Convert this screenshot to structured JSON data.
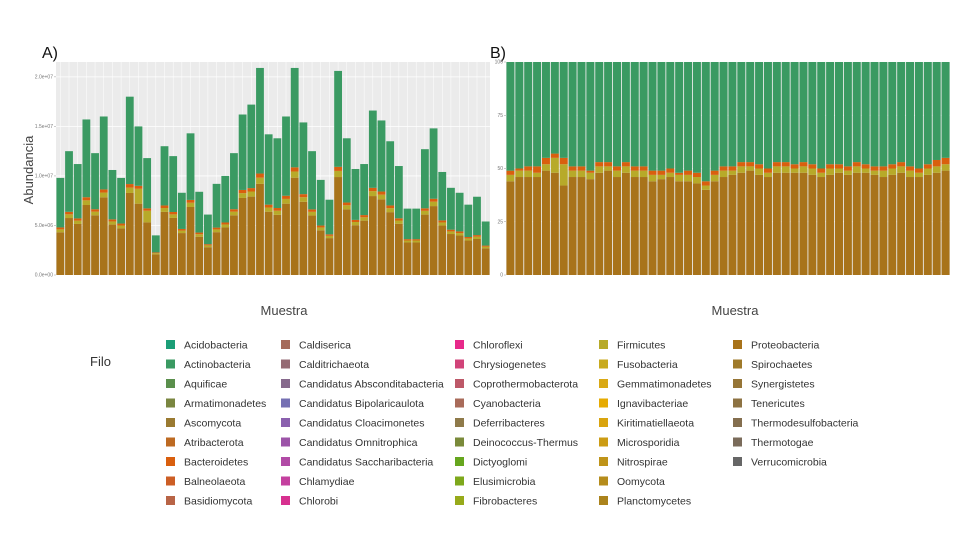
{
  "chart_data": [
    {
      "panel_label": "A)",
      "type": "bar",
      "stacked": true,
      "xlabel": "Muestra",
      "ylabel": "Abundancia",
      "yticks": [
        "0.0e+00",
        "5.0e+06",
        "1.0e+07",
        "1.5e+07",
        "2.0e+07"
      ],
      "ylim": [
        0,
        21500000
      ],
      "n_samples": 50,
      "grid": true,
      "totals": [
        9800000,
        12500000,
        11200000,
        15700000,
        12300000,
        16000000,
        10600000,
        9800000,
        18000000,
        15000000,
        11800000,
        4000000,
        13000000,
        12000000,
        8300000,
        14300000,
        8400000,
        6100000,
        9200000,
        10000000,
        12300000,
        16200000,
        17200000,
        20900000,
        14200000,
        13800000,
        16000000,
        20900000,
        15400000,
        12500000,
        9600000,
        7600000,
        20600000,
        13800000,
        10700000,
        11200000,
        16600000,
        15600000,
        13500000,
        11000000,
        6700000,
        6700000,
        12700000,
        14800000,
        10400000,
        8800000,
        8300000,
        7100000,
        7900000,
        5400000
      ],
      "proteo_fraction": [
        0.44,
        0.46,
        0.46,
        0.45,
        0.49,
        0.49,
        0.48,
        0.48,
        0.46,
        0.48,
        0.45,
        0.52,
        0.49,
        0.48,
        0.51,
        0.48,
        0.46,
        0.46,
        0.47,
        0.48,
        0.49,
        0.48,
        0.46,
        0.44,
        0.45,
        0.44,
        0.45,
        0.47,
        0.48,
        0.48,
        0.47,
        0.49,
        0.48,
        0.48,
        0.47,
        0.49,
        0.48,
        0.49,
        0.47,
        0.47,
        0.49,
        0.49,
        0.48,
        0.47,
        0.48,
        0.47,
        0.48,
        0.49,
        0.46,
        0.5
      ],
      "series": [
        {
          "name": "Proteobacteria",
          "color": "#a8731a"
        },
        {
          "name": "Firmicutes",
          "color": "#b7aa29"
        },
        {
          "name": "Bacteroidetes",
          "color": "#d95f0e"
        },
        {
          "name": "Actinobacteria",
          "color": "#3a9a62"
        }
      ]
    },
    {
      "panel_label": "B)",
      "type": "bar",
      "stacked": true,
      "percent": true,
      "xlabel": "Muestra",
      "ylabel": "",
      "yticks": [
        "0",
        "25",
        "50",
        "75",
        "100"
      ],
      "ylim": [
        0,
        100
      ],
      "n_samples": 50,
      "grid": true,
      "proteo_percent": [
        44,
        46,
        46,
        46,
        49,
        48,
        42,
        46,
        46,
        45,
        48,
        49,
        46,
        48,
        46,
        46,
        44,
        45,
        46,
        44,
        44,
        43,
        40,
        44,
        46,
        47,
        48,
        49,
        47,
        46,
        48,
        48,
        48,
        48,
        47,
        46,
        47,
        48,
        47,
        48,
        48,
        47,
        46,
        47,
        48,
        46,
        46,
        47,
        48,
        49
      ],
      "firmicutes_percent": [
        3,
        3,
        3,
        2,
        3,
        7,
        10,
        3,
        3,
        3,
        3,
        2,
        3,
        3,
        3,
        3,
        3,
        2,
        2,
        3,
        3,
        3,
        2,
        3,
        3,
        2,
        3,
        2,
        3,
        2,
        3,
        3,
        2,
        3,
        3,
        2,
        3,
        2,
        2,
        3,
        2,
        2,
        3,
        3,
        3,
        3,
        2,
        3,
        3,
        3
      ],
      "bacteroidetes_percent": [
        2,
        1,
        2,
        3,
        3,
        2,
        3,
        2,
        2,
        1,
        2,
        2,
        2,
        2,
        2,
        2,
        2,
        2,
        2,
        1,
        2,
        2,
        2,
        2,
        2,
        2,
        2,
        2,
        2,
        2,
        2,
        2,
        2,
        2,
        2,
        2,
        2,
        2,
        2,
        2,
        2,
        2,
        2,
        2,
        2,
        2,
        2,
        2,
        3,
        3
      ],
      "series": [
        {
          "name": "Proteobacteria",
          "color": "#a8731a"
        },
        {
          "name": "Firmicutes",
          "color": "#b7aa29"
        },
        {
          "name": "Bacteroidetes",
          "color": "#d95f0e"
        },
        {
          "name": "Actinobacteria",
          "color": "#3a9a62"
        }
      ]
    }
  ],
  "legend": {
    "title": "Filo",
    "columns": [
      [
        {
          "label": "Acidobacteria",
          "color": "#1b9e77"
        },
        {
          "label": "Actinobacteria",
          "color": "#3a9a62"
        },
        {
          "label": "Aquificae",
          "color": "#5a8f4c"
        },
        {
          "label": "Armatimonadetes",
          "color": "#7a8640"
        },
        {
          "label": "Ascomycota",
          "color": "#9a7a31"
        },
        {
          "label": "Atribacterota",
          "color": "#bd6a22"
        },
        {
          "label": "Bacteroidetes",
          "color": "#d95f0e"
        },
        {
          "label": "Balneolaeota",
          "color": "#cc5e25"
        },
        {
          "label": "Basidiomycota",
          "color": "#b86446"
        }
      ],
      [
        {
          "label": "Caldiserica",
          "color": "#a56a5a"
        },
        {
          "label": "Calditrichaeota",
          "color": "#956b74"
        },
        {
          "label": "Candidatus Absconditabacteria",
          "color": "#86698c"
        },
        {
          "label": "Candidatus Bipolaricaulota",
          "color": "#7570b3"
        },
        {
          "label": "Candidatus Cloacimonetes",
          "color": "#8a60ae"
        },
        {
          "label": "Candidatus Omnitrophica",
          "color": "#9c54a8"
        },
        {
          "label": "Candidatus Saccharibacteria",
          "color": "#b14ba6"
        },
        {
          "label": "Chlamydiae",
          "color": "#c4409f"
        },
        {
          "label": "Chlorobi",
          "color": "#d7308f"
        }
      ],
      [
        {
          "label": "Chloroflexi",
          "color": "#e7298a"
        },
        {
          "label": "Chrysiogenetes",
          "color": "#d14379"
        },
        {
          "label": "Coprothermobacterota",
          "color": "#bd5868"
        },
        {
          "label": "Cyanobacteria",
          "color": "#a96b5a"
        },
        {
          "label": "Deferribacteres",
          "color": "#8f7a4a"
        },
        {
          "label": "Deinococcus-Thermus",
          "color": "#7a8a3a"
        },
        {
          "label": "Dictyoglomi",
          "color": "#66a61e"
        },
        {
          "label": "Elusimicrobia",
          "color": "#7ea81c"
        },
        {
          "label": "Fibrobacteres",
          "color": "#97aa1a"
        }
      ],
      [
        {
          "label": "Firmicutes",
          "color": "#b7aa29"
        },
        {
          "label": "Fusobacteria",
          "color": "#c8aa1e"
        },
        {
          "label": "Gemmatimonadetes",
          "color": "#d9a914"
        },
        {
          "label": "Ignavibacteriae",
          "color": "#e6ab02"
        },
        {
          "label": "Kiritimatiellaeota",
          "color": "#d9a40e"
        },
        {
          "label": "Microsporidia",
          "color": "#cc9c14"
        },
        {
          "label": "Nitrospirae",
          "color": "#bf9419"
        },
        {
          "label": "Oomycota",
          "color": "#b58c1b"
        },
        {
          "label": "Planctomycetes",
          "color": "#ab831c"
        }
      ],
      [
        {
          "label": "Proteobacteria",
          "color": "#a8731a"
        },
        {
          "label": "Spirochaetes",
          "color": "#9f7a2a"
        },
        {
          "label": "Synergistetes",
          "color": "#967536"
        },
        {
          "label": "Tenericutes",
          "color": "#8d7242"
        },
        {
          "label": "Thermodesulfobacteria",
          "color": "#846e4e"
        },
        {
          "label": "Thermotogae",
          "color": "#7a6b5a"
        },
        {
          "label": "Verrucomicrobia",
          "color": "#666666"
        }
      ]
    ]
  },
  "colors": {
    "panel_background": "#ebebeb",
    "grid": "#ffffff"
  }
}
